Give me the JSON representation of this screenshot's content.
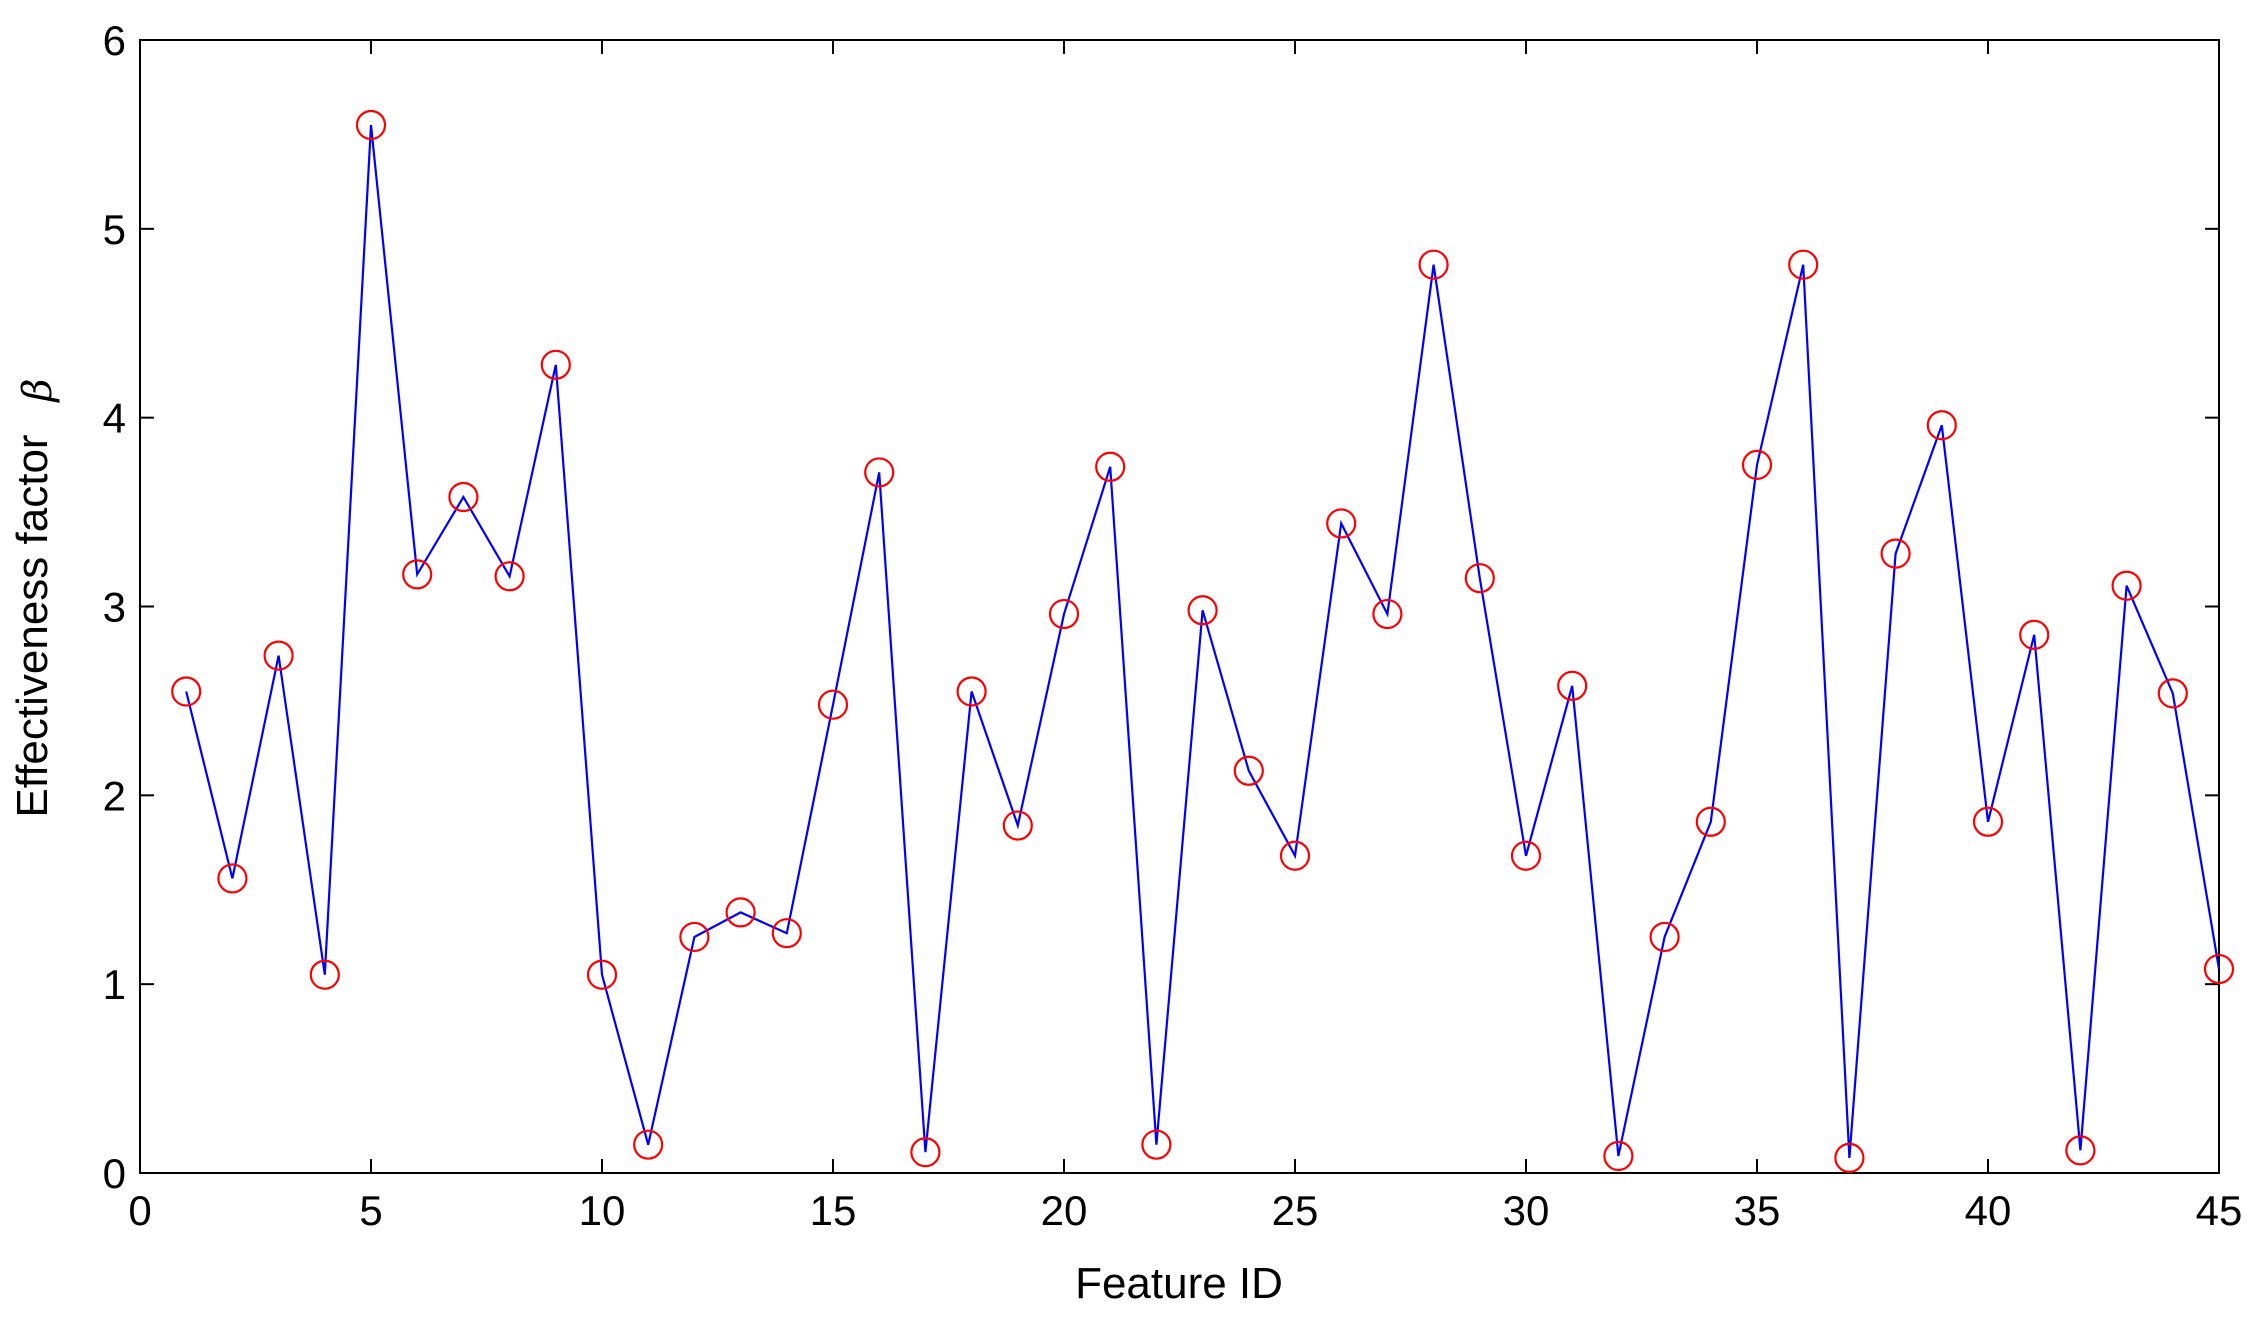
{
  "chart_data": {
    "type": "line",
    "title": "",
    "xlabel": "Feature ID",
    "ylabel": "Effectiveness factor",
    "ylabel_symbol": "β",
    "xlim": [
      0,
      45
    ],
    "ylim": [
      0,
      6
    ],
    "xticks": [
      0,
      5,
      10,
      15,
      20,
      25,
      30,
      35,
      40,
      45
    ],
    "yticks": [
      0,
      1,
      2,
      3,
      4,
      5,
      6
    ],
    "grid": false,
    "line_color": "#0000ff",
    "marker_color": "#ff0000",
    "marker": "circle",
    "x": [
      1,
      2,
      3,
      4,
      5,
      6,
      7,
      8,
      9,
      10,
      11,
      12,
      13,
      14,
      15,
      16,
      17,
      18,
      19,
      20,
      21,
      22,
      23,
      24,
      25,
      26,
      27,
      28,
      29,
      30,
      31,
      32,
      33,
      34,
      35,
      36,
      37,
      38,
      39,
      40,
      41,
      42,
      43,
      44,
      45
    ],
    "values": [
      2.55,
      1.56,
      2.74,
      1.05,
      5.55,
      3.17,
      3.58,
      3.16,
      4.28,
      1.05,
      0.15,
      1.25,
      1.38,
      1.27,
      2.48,
      3.71,
      0.11,
      2.55,
      1.84,
      2.96,
      3.74,
      0.15,
      2.98,
      2.13,
      1.68,
      3.44,
      2.96,
      4.81,
      3.15,
      1.68,
      2.58,
      0.09,
      1.25,
      1.86,
      3.75,
      4.81,
      0.08,
      3.28,
      3.96,
      1.86,
      2.85,
      0.12,
      3.11,
      2.54,
      1.08
    ]
  }
}
